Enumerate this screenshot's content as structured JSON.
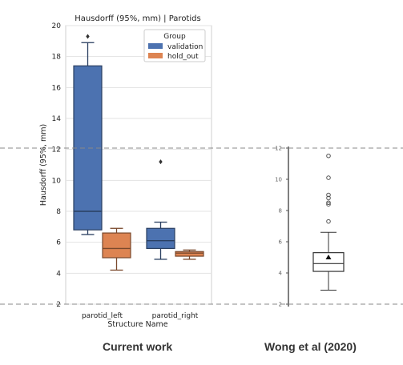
{
  "chart_data": [
    {
      "type": "box",
      "title": "Hausdorff (95%, mm) | Parotids",
      "xlabel": "Structure Name",
      "ylabel": "Hausdorff (95%, mm)",
      "ylim": [
        2,
        20
      ],
      "yticks": [
        2,
        4,
        6,
        8,
        10,
        12,
        14,
        16,
        18,
        20
      ],
      "categories": [
        "parotid_left",
        "parotid_right"
      ],
      "legend": {
        "title": "Group",
        "placement": "top-right"
      },
      "series": [
        {
          "name": "validation",
          "color": "#4c72b0",
          "boxes": [
            {
              "whisker_low": 6.5,
              "q1": 6.8,
              "median": 8.0,
              "q3": 17.4,
              "whisker_high": 18.9,
              "outliers": [
                19.3
              ]
            },
            {
              "whisker_low": 4.9,
              "q1": 5.6,
              "median": 6.1,
              "q3": 6.9,
              "whisker_high": 7.3,
              "outliers": [
                11.2
              ]
            }
          ]
        },
        {
          "name": "hold_out",
          "color": "#dd8452",
          "boxes": [
            {
              "whisker_low": 4.2,
              "q1": 5.0,
              "median": 5.6,
              "q3": 6.6,
              "whisker_high": 6.9,
              "outliers": []
            },
            {
              "whisker_low": 4.9,
              "q1": 5.1,
              "median": 5.3,
              "q3": 5.4,
              "whisker_high": 5.5,
              "outliers": []
            }
          ]
        }
      ]
    },
    {
      "type": "box",
      "ylim": [
        2,
        12
      ],
      "yticks": [
        2,
        4,
        6,
        8,
        10,
        12
      ],
      "series": [
        {
          "boxes": [
            {
              "whisker_low": 2.9,
              "q1": 4.1,
              "median": 4.6,
              "q3": 5.3,
              "whisker_high": 6.6,
              "mean": 5.0,
              "outliers": [
                7.3,
                8.4,
                8.5,
                8.8,
                9.0,
                10.1,
                11.5
              ]
            }
          ]
        }
      ]
    }
  ],
  "captions": {
    "left": "Current work",
    "right": "Wong et al (2020)"
  },
  "colors": {
    "reference_line": "#888888",
    "right_box_edge": "#333333"
  }
}
